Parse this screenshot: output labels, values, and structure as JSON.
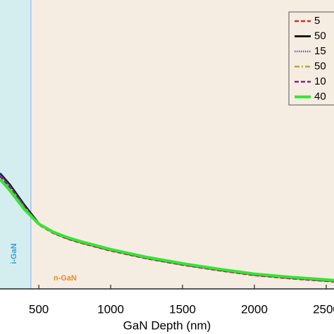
{
  "chart_data": {
    "type": "line",
    "x_label": "GaN Depth (nm)",
    "x": [
      230,
      300,
      400,
      500,
      600,
      700,
      800,
      1000,
      1250,
      1500,
      1750,
      2000,
      2250,
      2500,
      2554
    ],
    "series": [
      {
        "name": "5",
        "color": "#e8251f",
        "style": "dashed",
        "values": [
          0.39,
          0.35,
          0.28,
          0.222,
          0.193,
          0.173,
          0.158,
          0.132,
          0.105,
          0.083,
          0.064,
          0.047,
          0.036,
          0.027,
          0.025
        ]
      },
      {
        "name": "50",
        "color": "#1a1a1a",
        "style": "solid",
        "values": [
          0.4,
          0.36,
          0.29,
          0.226,
          0.195,
          0.175,
          0.16,
          0.134,
          0.107,
          0.085,
          0.066,
          0.049,
          0.038,
          0.029,
          0.027
        ]
      },
      {
        "name": "15",
        "color": "#5a5ad0",
        "style": "dotted",
        "values": [
          0.395,
          0.355,
          0.285,
          0.225,
          0.195,
          0.175,
          0.16,
          0.134,
          0.107,
          0.085,
          0.066,
          0.049,
          0.038,
          0.029,
          0.027
        ]
      },
      {
        "name": "50",
        "color": "#b5a642",
        "style": "dashdot",
        "values": [
          0.39,
          0.35,
          0.283,
          0.224,
          0.195,
          0.175,
          0.16,
          0.134,
          0.107,
          0.085,
          0.066,
          0.049,
          0.038,
          0.029,
          0.027
        ]
      },
      {
        "name": "10",
        "color": "#8a1f8a",
        "style": "dashed",
        "values": [
          0.39,
          0.35,
          0.282,
          0.224,
          0.195,
          0.175,
          0.16,
          0.134,
          0.107,
          0.085,
          0.066,
          0.049,
          0.038,
          0.029,
          0.027
        ]
      },
      {
        "name": "40",
        "color": "#33e633",
        "style": "thick",
        "values": [
          0.38,
          0.34,
          0.275,
          0.225,
          0.197,
          0.178,
          0.163,
          0.137,
          0.11,
          0.088,
          0.069,
          0.052,
          0.041,
          0.032,
          0.03
        ]
      }
    ],
    "regions": [
      {
        "label": "i-GaN",
        "start": 230,
        "end": 445,
        "color": "#d4eef0",
        "label_color": "#3a9ad6"
      },
      {
        "label": "n-GaN",
        "start": 445,
        "end": 2554,
        "color": "#f6ede2",
        "label_color": "#e68a2e"
      }
    ],
    "xlim": [
      230,
      2554
    ],
    "xticks": [
      500,
      1000,
      1500,
      2000,
      2500
    ],
    "ylim": [
      0,
      1
    ],
    "legend": "upper right"
  }
}
